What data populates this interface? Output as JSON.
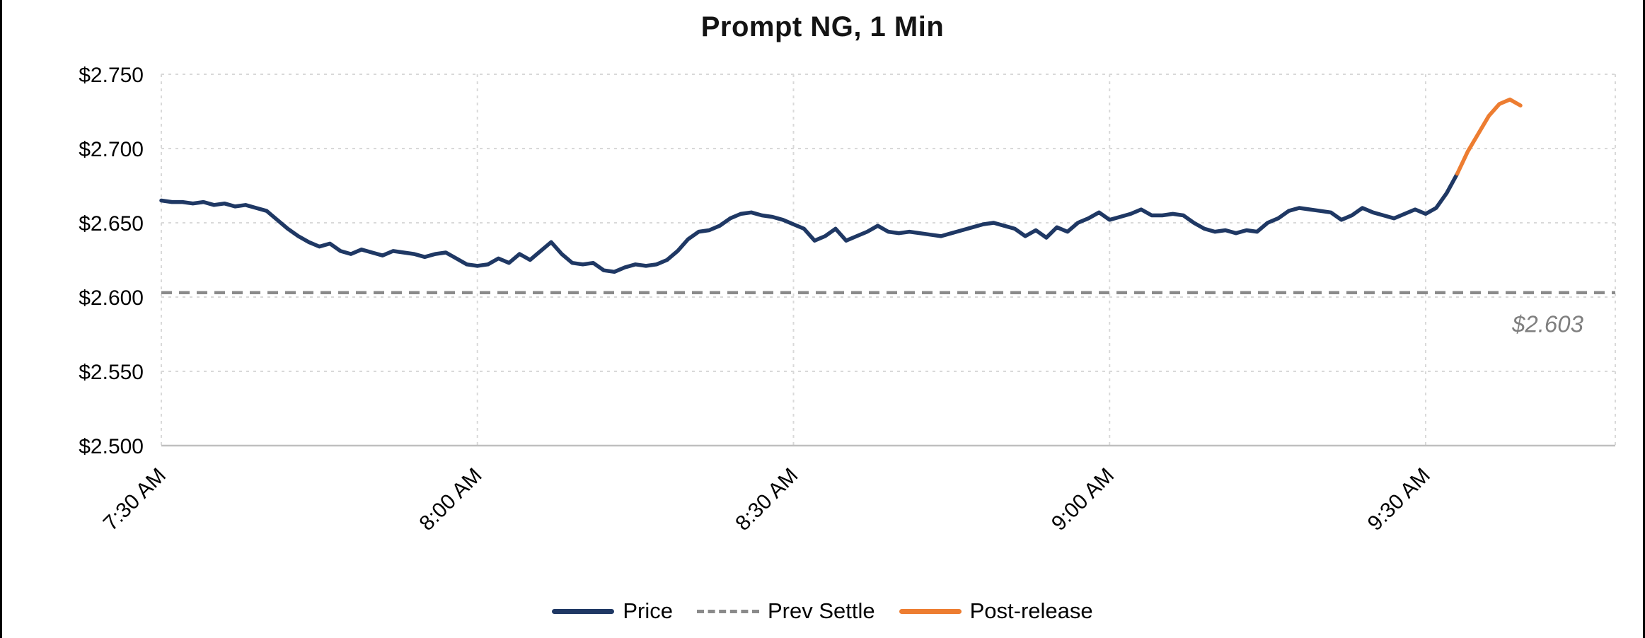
{
  "chart_data": {
    "type": "line",
    "title": "Prompt NG, 1 Min",
    "xlabel": "",
    "ylabel": "",
    "ylim": [
      2.5,
      2.75
    ],
    "x_range": [
      0,
      138
    ],
    "x_unit": "minutes since 7:30 AM",
    "grid": true,
    "legend_position": "bottom",
    "legend": [
      "Price",
      "Prev Settle",
      "Post-release"
    ],
    "y_ticks": [
      {
        "value": 2.75,
        "label": "$2.750"
      },
      {
        "value": 2.7,
        "label": "$2.700"
      },
      {
        "value": 2.65,
        "label": "$2.650"
      },
      {
        "value": 2.6,
        "label": "$2.600"
      },
      {
        "value": 2.55,
        "label": "$2.550"
      },
      {
        "value": 2.5,
        "label": "$2.500"
      }
    ],
    "x_ticks": [
      {
        "minute": 0,
        "label": "7:30 AM"
      },
      {
        "minute": 30,
        "label": "8:00 AM"
      },
      {
        "minute": 60,
        "label": "8:30 AM"
      },
      {
        "minute": 90,
        "label": "9:00 AM"
      },
      {
        "minute": 120,
        "label": "9:30 AM"
      }
    ],
    "prev_settle": {
      "name": "Prev Settle",
      "value": 2.603,
      "annotation_label": "$2.603",
      "color": "#8a8a8a",
      "style": "dashed"
    },
    "series": [
      {
        "name": "Price",
        "color": "#1f3864",
        "start_minute": 0,
        "step_minutes": 1,
        "values": [
          2.665,
          2.664,
          2.664,
          2.663,
          2.664,
          2.662,
          2.663,
          2.661,
          2.662,
          2.66,
          2.658,
          2.652,
          2.646,
          2.641,
          2.637,
          2.634,
          2.636,
          2.631,
          2.629,
          2.632,
          2.63,
          2.628,
          2.631,
          2.63,
          2.629,
          2.627,
          2.629,
          2.63,
          2.626,
          2.622,
          2.621,
          2.622,
          2.626,
          2.623,
          2.629,
          2.625,
          2.631,
          2.637,
          2.629,
          2.623,
          2.622,
          2.623,
          2.618,
          2.617,
          2.62,
          2.622,
          2.621,
          2.622,
          2.625,
          2.631,
          2.639,
          2.644,
          2.645,
          2.648,
          2.653,
          2.656,
          2.657,
          2.655,
          2.654,
          2.652,
          2.649,
          2.646,
          2.638,
          2.641,
          2.646,
          2.638,
          2.641,
          2.644,
          2.648,
          2.644,
          2.643,
          2.644,
          2.643,
          2.642,
          2.641,
          2.643,
          2.645,
          2.647,
          2.649,
          2.65,
          2.648,
          2.646,
          2.641,
          2.645,
          2.64,
          2.647,
          2.644,
          2.65,
          2.653,
          2.657,
          2.652,
          2.654,
          2.656,
          2.659,
          2.655,
          2.655,
          2.656,
          2.655,
          2.65,
          2.646,
          2.644,
          2.645,
          2.643,
          2.645,
          2.644,
          2.65,
          2.653,
          2.658,
          2.66,
          2.659,
          2.658,
          2.657,
          2.652,
          2.655,
          2.66,
          2.657,
          2.655,
          2.653,
          2.656,
          2.659,
          2.656,
          2.66,
          2.67,
          2.683
        ]
      },
      {
        "name": "Post-release",
        "color": "#ed7d31",
        "start_minute": 123,
        "step_minutes": 1,
        "values": [
          2.683,
          2.698,
          2.71,
          2.722,
          2.73,
          2.733,
          2.729
        ]
      }
    ]
  }
}
